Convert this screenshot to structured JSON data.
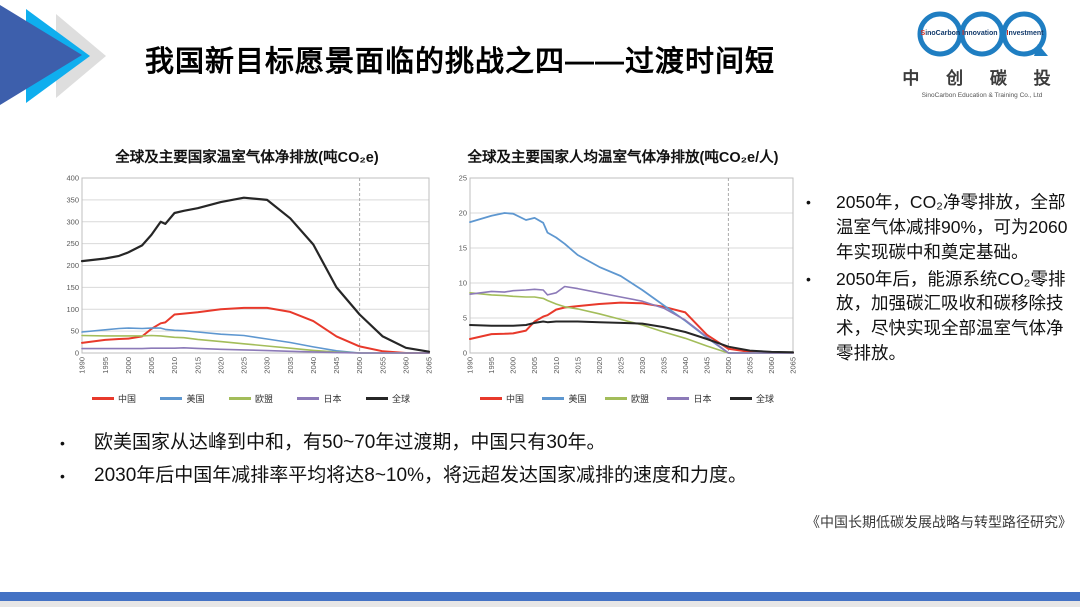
{
  "slide": {
    "title": "我国新目标愿景面临的挑战之四——过渡时间短",
    "citation": "《中国长期低碳发展战略与转型路径研究》"
  },
  "logo": {
    "words": [
      "SinoCarbon",
      "Innovation",
      "Investment"
    ],
    "amp": "&",
    "name_cn": "中 创 碳 投",
    "name_en": "SinoCarbon Education & Training Co., Ltd",
    "ring_color": "#1F7EC2"
  },
  "right_notes": {
    "items": [
      "2050年，CO₂净零排放，全部温室气体减排90%，可为2060年实现碳中和奠定基础。",
      "2050年后，能源系统CO₂零排放，加强碳汇吸收和碳移除技术，尽快实现全部温室气体净零排放。"
    ]
  },
  "bottom_notes": {
    "items": [
      "欧美国家从达峰到中和，有50~70年过渡期，中国只有30年。",
      "2030年后中国年减排率平均将达8~10%，将远超发达国家减排的速度和力度。"
    ]
  },
  "colors": {
    "accent_blue": "#4472C4",
    "arrow_dark_blue": "#3D5FAC",
    "arrow_cyan": "#0FAEEE",
    "arrow_gray": "#DEDEDE",
    "grid": "#D9D9D9",
    "plot_border": "#BFBFBF",
    "axis_text": "#595959",
    "vline": "#ABABAB",
    "footer_gray": "#E7E6E6"
  },
  "chart_data": [
    {
      "type": "line",
      "title": "全球及主要国家温室气体净排放(吨CO₂e)",
      "xlabel": "",
      "ylabel": "",
      "x_range": [
        1990,
        2065
      ],
      "x_ticks": [
        1990,
        1995,
        2000,
        2005,
        2010,
        2015,
        2020,
        2025,
        2030,
        2035,
        2040,
        2045,
        2050,
        2055,
        2060,
        2065
      ],
      "x": [
        1990,
        1995,
        1998,
        2000,
        2003,
        2005,
        2007,
        2008,
        2010,
        2012,
        2015,
        2020,
        2025,
        2030,
        2035,
        2040,
        2045,
        2050,
        2055,
        2060,
        2065
      ],
      "ylim": [
        0,
        400
      ],
      "y_step": 50,
      "grid": true,
      "vline_year": 2050,
      "legend_position": "bottom",
      "series": [
        {
          "name": "中国",
          "key": "china",
          "color": "#E8392B",
          "width": 2.0,
          "values": [
            23,
            30,
            32,
            33,
            38,
            55,
            68,
            70,
            88,
            90,
            93,
            100,
            103,
            103,
            94,
            73,
            38,
            15,
            4,
            0,
            0
          ]
        },
        {
          "name": "美国",
          "key": "usa",
          "color": "#5E97D0",
          "width": 1.6,
          "values": [
            48,
            53,
            56,
            57,
            56,
            57,
            57,
            54,
            52,
            51,
            48,
            43,
            40,
            32,
            24,
            14,
            5,
            0,
            0,
            0,
            0
          ]
        },
        {
          "name": "欧盟",
          "key": "eu",
          "color": "#A3BD5A",
          "width": 1.6,
          "values": [
            40,
            39,
            39,
            39,
            39,
            40,
            39,
            38,
            36,
            35,
            31,
            26,
            21,
            16,
            11,
            6,
            2,
            0,
            0,
            0,
            0
          ]
        },
        {
          "name": "日本",
          "key": "japan",
          "color": "#8C7AB8",
          "width": 1.6,
          "values": [
            10,
            10,
            10,
            10,
            10,
            11,
            11,
            11,
            11,
            12,
            10.5,
            8.5,
            7,
            5.5,
            4,
            2.5,
            1,
            0,
            0,
            0,
            0
          ]
        },
        {
          "name": "全球",
          "key": "global",
          "color": "#262626",
          "width": 2.2,
          "values": [
            210,
            216,
            222,
            230,
            246,
            270,
            300,
            295,
            320,
            325,
            331,
            345,
            355,
            350,
            308,
            248,
            150,
            88,
            38,
            12,
            3
          ]
        }
      ]
    },
    {
      "type": "line",
      "title": "全球及主要国家人均温室气体净排放(吨CO₂e/人)",
      "xlabel": "",
      "ylabel": "",
      "x_range": [
        1990,
        2065
      ],
      "x_ticks": [
        1990,
        1995,
        2000,
        2005,
        2010,
        2015,
        2020,
        2025,
        2030,
        2035,
        2040,
        2045,
        2050,
        2055,
        2060,
        2065
      ],
      "x": [
        1990,
        1995,
        1998,
        2000,
        2003,
        2005,
        2007,
        2008,
        2010,
        2012,
        2015,
        2020,
        2025,
        2030,
        2035,
        2040,
        2045,
        2050,
        2055,
        2060,
        2065
      ],
      "ylim": [
        0,
        25
      ],
      "y_step": 5,
      "grid": true,
      "vline_year": 2050,
      "legend_position": "bottom",
      "series": [
        {
          "name": "中国",
          "key": "china",
          "color": "#E8392B",
          "width": 2.0,
          "values": [
            2.0,
            2.7,
            2.75,
            2.8,
            3.2,
            4.5,
            5.2,
            5.4,
            6.2,
            6.5,
            6.7,
            7.0,
            7.2,
            7.1,
            6.6,
            5.8,
            2.6,
            0.6,
            0.15,
            0,
            0
          ]
        },
        {
          "name": "美国",
          "key": "usa",
          "color": "#5E97D0",
          "width": 1.8,
          "values": [
            18.7,
            19.6,
            20.0,
            19.9,
            19.0,
            19.3,
            18.6,
            17.2,
            16.5,
            15.6,
            14.0,
            12.3,
            11.0,
            9.0,
            6.8,
            4.6,
            2.2,
            0,
            0,
            0,
            0
          ]
        },
        {
          "name": "欧盟",
          "key": "eu",
          "color": "#A3BD5A",
          "width": 1.6,
          "values": [
            8.6,
            8.3,
            8.2,
            8.1,
            8.0,
            8.0,
            7.8,
            7.5,
            7.0,
            6.6,
            6.3,
            5.6,
            4.8,
            4.0,
            3.0,
            2.1,
            1.0,
            0,
            0,
            0,
            0
          ]
        },
        {
          "name": "日本",
          "key": "japan",
          "color": "#8C7AB8",
          "width": 1.6,
          "values": [
            8.4,
            8.8,
            8.7,
            8.9,
            9.0,
            9.1,
            9.0,
            8.3,
            8.6,
            9.5,
            9.2,
            8.6,
            8.0,
            7.4,
            6.4,
            4.7,
            2.3,
            0,
            0,
            0,
            0
          ]
        },
        {
          "name": "全球",
          "key": "global",
          "color": "#262626",
          "width": 2.0,
          "values": [
            4.0,
            3.9,
            3.9,
            3.9,
            4.0,
            4.3,
            4.5,
            4.4,
            4.5,
            4.5,
            4.5,
            4.4,
            4.3,
            4.2,
            3.7,
            3.0,
            2.0,
            0.9,
            0.35,
            0.15,
            0.1
          ]
        }
      ]
    }
  ]
}
